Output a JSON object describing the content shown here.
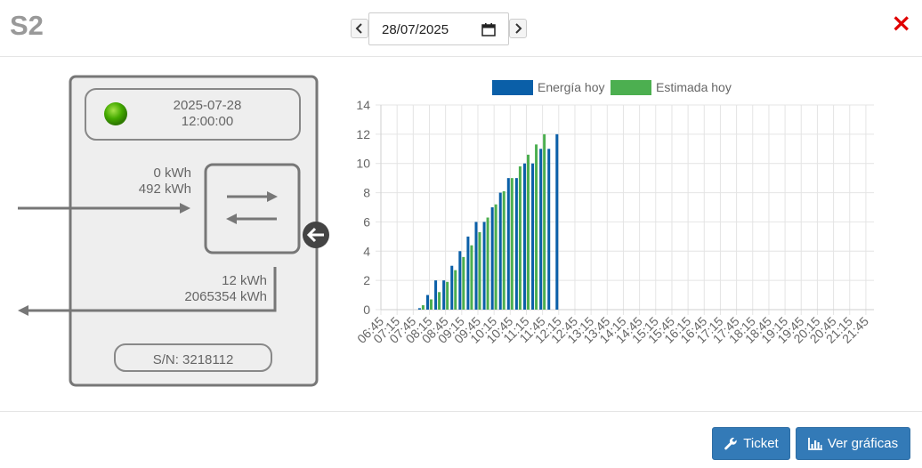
{
  "header": {
    "title": "S2",
    "date_value": "28/07/2025",
    "close_glyph": "×"
  },
  "meter": {
    "datetime_line1": "2025-07-28",
    "datetime_line2": "12:00:00",
    "status_color": "#44aa00",
    "import_today": "0 kWh",
    "import_total": "492 kWh",
    "export_today": "12 kWh",
    "export_total": "2065354 kWh",
    "serial": "S/N: 3218112"
  },
  "footer": {
    "ticket_label": "Ticket",
    "charts_label": "Ver gráficas"
  },
  "colors": {
    "accent_button": "#337ab7",
    "series_energy": "#0a5fa8",
    "series_estimate": "#4caf50",
    "close": "#e00000"
  },
  "chart_data": {
    "type": "bar",
    "legend": [
      "Energía hoy",
      "Estimada hoy"
    ],
    "legend_position": "top",
    "grid": true,
    "ylim": [
      0,
      14
    ],
    "yticks": [
      "0",
      "2",
      "4",
      "6",
      "8",
      "10",
      "12",
      "14"
    ],
    "xtick_labels": [
      "06:45",
      "07:15",
      "07:45",
      "08:15",
      "08:45",
      "09:15",
      "09:45",
      "10:15",
      "10:45",
      "11:15",
      "11:45",
      "12:15",
      "12:45",
      "13:15",
      "13:45",
      "14:15",
      "14:45",
      "15:15",
      "15:45",
      "16:15",
      "16:45",
      "17:15",
      "17:45",
      "18:15",
      "18:45",
      "19:15",
      "19:45",
      "20:15",
      "20:45",
      "21:15",
      "21:45"
    ],
    "categories": [
      "06:45",
      "07:00",
      "07:15",
      "07:30",
      "07:45",
      "08:00",
      "08:15",
      "08:30",
      "08:45",
      "09:00",
      "09:15",
      "09:30",
      "09:45",
      "10:00",
      "10:15",
      "10:30",
      "10:45",
      "11:00",
      "11:15",
      "11:30",
      "11:45",
      "12:00",
      "12:15",
      "12:30",
      "12:45",
      "13:00",
      "13:15",
      "13:30",
      "13:45",
      "14:00",
      "14:15",
      "14:30",
      "14:45",
      "15:00",
      "15:15",
      "15:30",
      "15:45",
      "16:00",
      "16:15",
      "16:30",
      "16:45",
      "17:00",
      "17:15",
      "17:30",
      "17:45",
      "18:00",
      "18:15",
      "18:30",
      "18:45",
      "19:00",
      "19:15",
      "19:30",
      "19:45",
      "20:00",
      "20:15",
      "20:30",
      "20:45",
      "21:00",
      "21:15",
      "21:30",
      "21:45",
      "22:00"
    ],
    "series": [
      {
        "name": "Energía hoy",
        "color": "#0a5fa8",
        "values": [
          0,
          0,
          0,
          0,
          0,
          0.1,
          1.0,
          2.0,
          2.0,
          3.0,
          4.0,
          5.0,
          6.0,
          6.0,
          7.0,
          8.0,
          9.0,
          9.0,
          10.0,
          10.0,
          11.0,
          11.0,
          12.0,
          null,
          null,
          null,
          null,
          null,
          null,
          null,
          null,
          null,
          null,
          null,
          null,
          null,
          null,
          null,
          null,
          null,
          null,
          null,
          null,
          null,
          null,
          null,
          null,
          null,
          null,
          null,
          null,
          null,
          null,
          null,
          null,
          null,
          null,
          null,
          null,
          null,
          null,
          null
        ]
      },
      {
        "name": "Estimada hoy",
        "color": "#4caf50",
        "values": [
          0,
          0,
          0,
          0,
          0,
          0.3,
          0.7,
          1.2,
          1.9,
          2.7,
          3.6,
          4.4,
          5.3,
          6.3,
          7.2,
          8.1,
          9.0,
          9.8,
          10.6,
          11.3,
          12.0,
          0,
          0,
          null,
          null,
          null,
          null,
          null,
          null,
          null,
          null,
          null,
          null,
          null,
          null,
          null,
          null,
          null,
          null,
          null,
          null,
          null,
          null,
          null,
          null,
          null,
          null,
          null,
          null,
          null,
          null,
          null,
          null,
          null,
          null,
          null,
          null,
          null,
          null,
          null,
          null,
          null
        ]
      }
    ]
  }
}
